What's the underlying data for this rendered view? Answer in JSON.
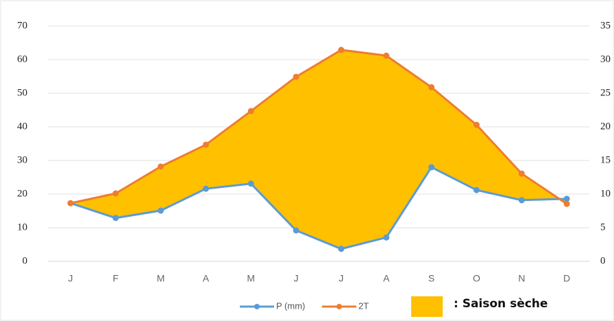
{
  "chart_data": {
    "type": "line",
    "categories": [
      "J",
      "F",
      "M",
      "A",
      "M",
      "J",
      "J",
      "A",
      "S",
      "O",
      "N",
      "D"
    ],
    "series": [
      {
        "name": "P (mm)",
        "color": "#5b9bd5",
        "values": [
          17.3,
          12.9,
          15.1,
          21.6,
          23.1,
          9.2,
          3.7,
          7.1,
          28,
          21.2,
          18.2,
          18.6
        ]
      },
      {
        "name": "2T",
        "color": "#ed7d31",
        "values": [
          17.3,
          20.2,
          28.2,
          34.7,
          44.7,
          54.9,
          62.9,
          61.2,
          51.8,
          40.6,
          26.1,
          17.1
        ]
      }
    ],
    "fill_label": ": Saison sèche",
    "fill_color": "#ffc000",
    "ylim": [
      0,
      70
    ],
    "yticks": [
      0,
      10,
      20,
      30,
      40,
      50,
      60,
      70
    ],
    "y2lim": [
      0,
      35
    ],
    "y2ticks": [
      0,
      5,
      10,
      15,
      20,
      25,
      30,
      35
    ],
    "grid": true
  }
}
